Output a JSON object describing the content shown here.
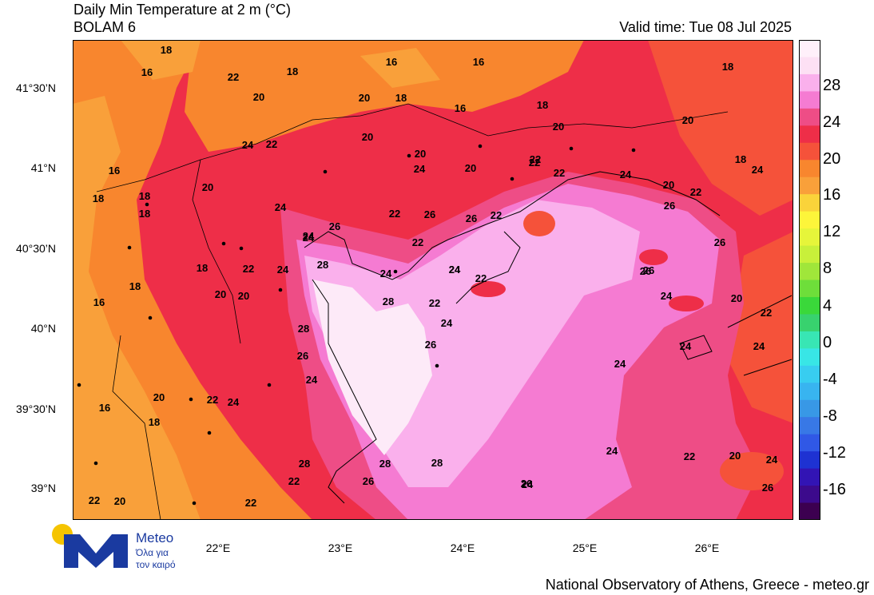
{
  "header": {
    "title": "Daily Min Temperature at 2 m (°C)",
    "model": "BOLAM 6",
    "valid_time": "Valid time: Tue 08 Jul 2025"
  },
  "map": {
    "lat_labels": [
      "41°30’N",
      "41°N",
      "40°30’N",
      "40°N",
      "39°30’N",
      "39°N"
    ],
    "lon_labels": [
      "22°E",
      "23°E",
      "24°E",
      "25°E",
      "26°E"
    ],
    "colors": {
      "c16": "#f9a03a",
      "c18": "#f8862e",
      "c20": "#f5523a",
      "c22": "#ee2e48",
      "c24": "#ee4d86",
      "c26": "#f57bd2",
      "c28": "#fab0ec",
      "c30": "#fdeaf8",
      "coast": "#000000"
    },
    "contour_labels": [
      "18",
      "16",
      "22",
      "18",
      "16",
      "16",
      "20",
      "20",
      "18",
      "16",
      "18",
      "20",
      "20",
      "18",
      "22",
      "24",
      "20",
      "20",
      "22",
      "22",
      "24",
      "16",
      "20",
      "20",
      "22",
      "18",
      "24",
      "24",
      "20",
      "22",
      "18",
      "24",
      "26",
      "26",
      "22",
      "18",
      "24",
      "18",
      "26",
      "22",
      "26",
      "28",
      "22",
      "24",
      "24",
      "24",
      "22",
      "26",
      "24",
      "26",
      "18",
      "20",
      "18",
      "20",
      "26",
      "22",
      "28",
      "24",
      "28",
      "26",
      "24",
      "22",
      "24",
      "20",
      "16",
      "22",
      "24",
      "24",
      "24",
      "18",
      "22",
      "24",
      "26",
      "28",
      "28",
      "28",
      "24",
      "26",
      "26",
      "16",
      "24",
      "20",
      "24",
      "22",
      "20",
      "24",
      "26",
      "22",
      "22",
      "20",
      "22"
    ]
  },
  "colorbar": {
    "labels": [
      "28",
      "24",
      "20",
      "16",
      "12",
      "8",
      "4",
      "0",
      "-4",
      "-8",
      "-12",
      "-16"
    ],
    "colors": [
      "#fff0fa",
      "#fde0f4",
      "#fab0ec",
      "#f57bd2",
      "#ee4d86",
      "#ee2e48",
      "#f5523a",
      "#f8862e",
      "#f9a03a",
      "#fad33a",
      "#fdf53a",
      "#e6f53a",
      "#c8f03a",
      "#a0e63a",
      "#6ede3a",
      "#3ad83a",
      "#38d26e",
      "#38e6b4",
      "#38e6e6",
      "#38cdf0",
      "#38b4f0",
      "#3898e6",
      "#3878e6",
      "#3058e6",
      "#1e32d2",
      "#3214b4",
      "#3c0a8c",
      "#3c0050"
    ]
  },
  "branding": {
    "logo_text": "Meteo",
    "logo_sub1": "Όλα για",
    "logo_sub2": "τον καιρό",
    "credit": "National Observatory of Athens, Greece - meteo.gr"
  }
}
